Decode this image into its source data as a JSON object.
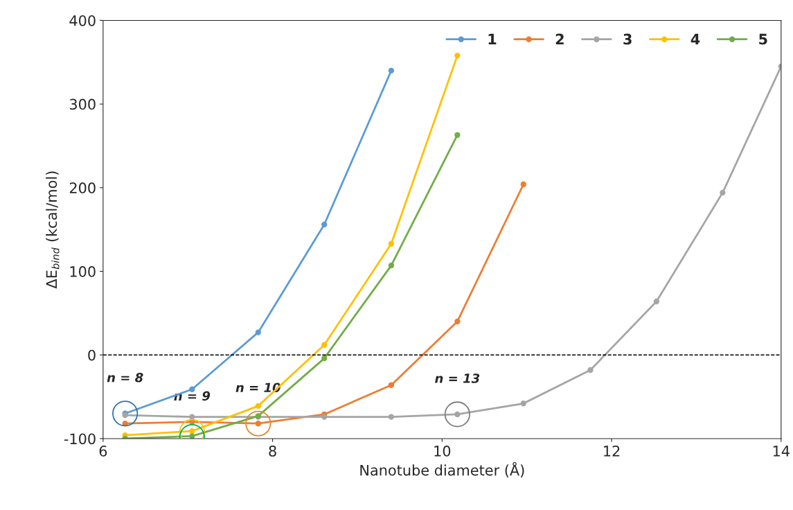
{
  "chart_data": {
    "type": "line",
    "xlabel": "Nanotube diameter (Å)",
    "ylabel": "ΔE$_{bind}$ (kcal/mol)",
    "xlim": [
      6,
      14
    ],
    "xticks": [
      6,
      8,
      10,
      12,
      14
    ],
    "ylim": [
      -100,
      400
    ],
    "yticks": [
      -100,
      0,
      100,
      200,
      300,
      400
    ],
    "grid": false,
    "legend": "top right",
    "marker": "circle",
    "line_style": "solid",
    "ref_lines": [
      {
        "axis": "y",
        "value": 0,
        "line_style": "dashed",
        "color": "#000000"
      }
    ],
    "annotations": [
      {
        "text": "n = 8",
        "x": 6.26,
        "y": -70
      },
      {
        "text": "n = 9",
        "x": 7.05,
        "y": -92
      },
      {
        "text": "n = 10",
        "x": 7.83,
        "y": -82
      },
      {
        "text": "n = 13",
        "x": 10.18,
        "y": -71
      }
    ],
    "series": [
      {
        "name": "1",
        "color": "#5b9bd5",
        "x": [
          6.26,
          7.05,
          7.83,
          8.61,
          9.4
        ],
        "values": [
          -70,
          -41,
          27,
          156,
          340
        ]
      },
      {
        "name": "2",
        "color": "#ed7d31",
        "x": [
          6.26,
          7.05,
          7.83,
          8.61,
          9.4,
          10.18,
          10.96
        ],
        "values": [
          -82,
          -80,
          -82,
          -71,
          -36,
          40,
          204
        ]
      },
      {
        "name": "3",
        "color": "#a5a5a5",
        "x": [
          6.26,
          7.05,
          7.83,
          8.61,
          9.4,
          10.18,
          10.96,
          11.75,
          12.53,
          13.31,
          14.0
        ],
        "values": [
          -72,
          -74,
          -74,
          -74,
          -74,
          -71,
          -58,
          -18,
          64,
          194,
          345
        ]
      },
      {
        "name": "4",
        "color": "#ffc000",
        "x": [
          6.26,
          7.05,
          7.83,
          8.61,
          9.4,
          10.18
        ],
        "values": [
          -96,
          -91,
          -61,
          12,
          133,
          358
        ]
      },
      {
        "name": "5",
        "color": "#70ad47",
        "x": [
          6.26,
          7.05,
          7.83,
          8.61,
          9.4,
          10.18
        ],
        "values": [
          -100,
          -97,
          -73,
          -4,
          107,
          263
        ]
      },
      {
        "type": "scatter",
        "marker": "circle",
        "x": [
          6.26,
          7.05,
          7.05,
          7.83,
          10.18
        ],
        "values": [
          -70,
          -92,
          -98,
          -82,
          -71
        ],
        "colors": [
          "#2e75b6",
          "#ffc000",
          "#00b050",
          "#e08a2c",
          "#7f7f7f"
        ]
      }
    ]
  }
}
